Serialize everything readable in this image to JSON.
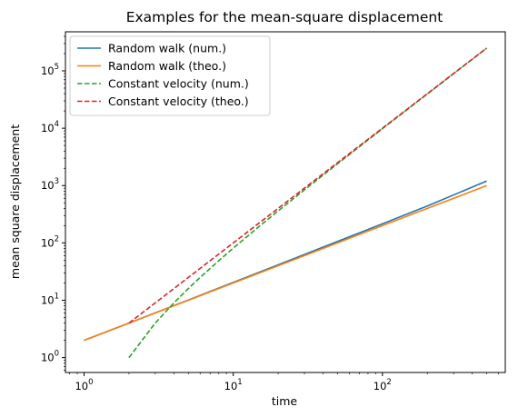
{
  "chart_data": {
    "type": "line",
    "title": "Examples for the mean-square displacement",
    "xlabel": "time",
    "ylabel": "mean square displacement",
    "xscale": "log",
    "yscale": "log",
    "xlim": [
      0.75,
      666
    ],
    "ylim": [
      0.55,
      480000
    ],
    "grid": false,
    "legend_position": "top-left",
    "x_ticks": [
      {
        "value": 1,
        "base": "10",
        "exp": "0"
      },
      {
        "value": 10,
        "base": "10",
        "exp": "1"
      },
      {
        "value": 100,
        "base": "10",
        "exp": "2"
      }
    ],
    "y_ticks": [
      {
        "value": 1,
        "base": "10",
        "exp": "0"
      },
      {
        "value": 10,
        "base": "10",
        "exp": "1"
      },
      {
        "value": 100,
        "base": "10",
        "exp": "2"
      },
      {
        "value": 1000,
        "base": "10",
        "exp": "3"
      },
      {
        "value": 10000,
        "base": "10",
        "exp": "4"
      },
      {
        "value": 100000,
        "base": "10",
        "exp": "5"
      }
    ],
    "series": [
      {
        "name": "Random walk (num.)",
        "color": "#1f77b4",
        "dash": "solid",
        "points": [
          [
            1,
            2.0
          ],
          [
            2,
            4.0
          ],
          [
            5,
            10.1
          ],
          [
            10,
            20.5
          ],
          [
            20,
            41.5
          ],
          [
            50,
            106
          ],
          [
            100,
            215
          ],
          [
            200,
            440
          ],
          [
            500,
            1200
          ]
        ]
      },
      {
        "name": "Random walk (theo.)",
        "color": "#ff7f0e",
        "dash": "solid",
        "points": [
          [
            1,
            2.0
          ],
          [
            2,
            4.0
          ],
          [
            5,
            10
          ],
          [
            10,
            20
          ],
          [
            20,
            40
          ],
          [
            50,
            100
          ],
          [
            100,
            200
          ],
          [
            200,
            400
          ],
          [
            500,
            1000
          ]
        ]
      },
      {
        "name": "Constant velocity (num.)",
        "color": "#2ca02c",
        "dash": "dashed",
        "points": [
          [
            2,
            1.0
          ],
          [
            3,
            4.0
          ],
          [
            4,
            9.0
          ],
          [
            5,
            16.0
          ],
          [
            6,
            25.0
          ],
          [
            8,
            49.0
          ],
          [
            10,
            81.0
          ],
          [
            15,
            196
          ],
          [
            20,
            361
          ],
          [
            30,
            841
          ],
          [
            50,
            2401
          ],
          [
            100,
            9801
          ],
          [
            200,
            39601
          ],
          [
            500,
            249001
          ]
        ]
      },
      {
        "name": "Constant velocity (theo.)",
        "color": "#d62728",
        "dash": "dashed",
        "points": [
          [
            2,
            4.0
          ],
          [
            3,
            9.0
          ],
          [
            5,
            25.0
          ],
          [
            10,
            100
          ],
          [
            20,
            400
          ],
          [
            50,
            2500
          ],
          [
            100,
            10000
          ],
          [
            200,
            40000
          ],
          [
            500,
            250000
          ]
        ]
      }
    ]
  }
}
